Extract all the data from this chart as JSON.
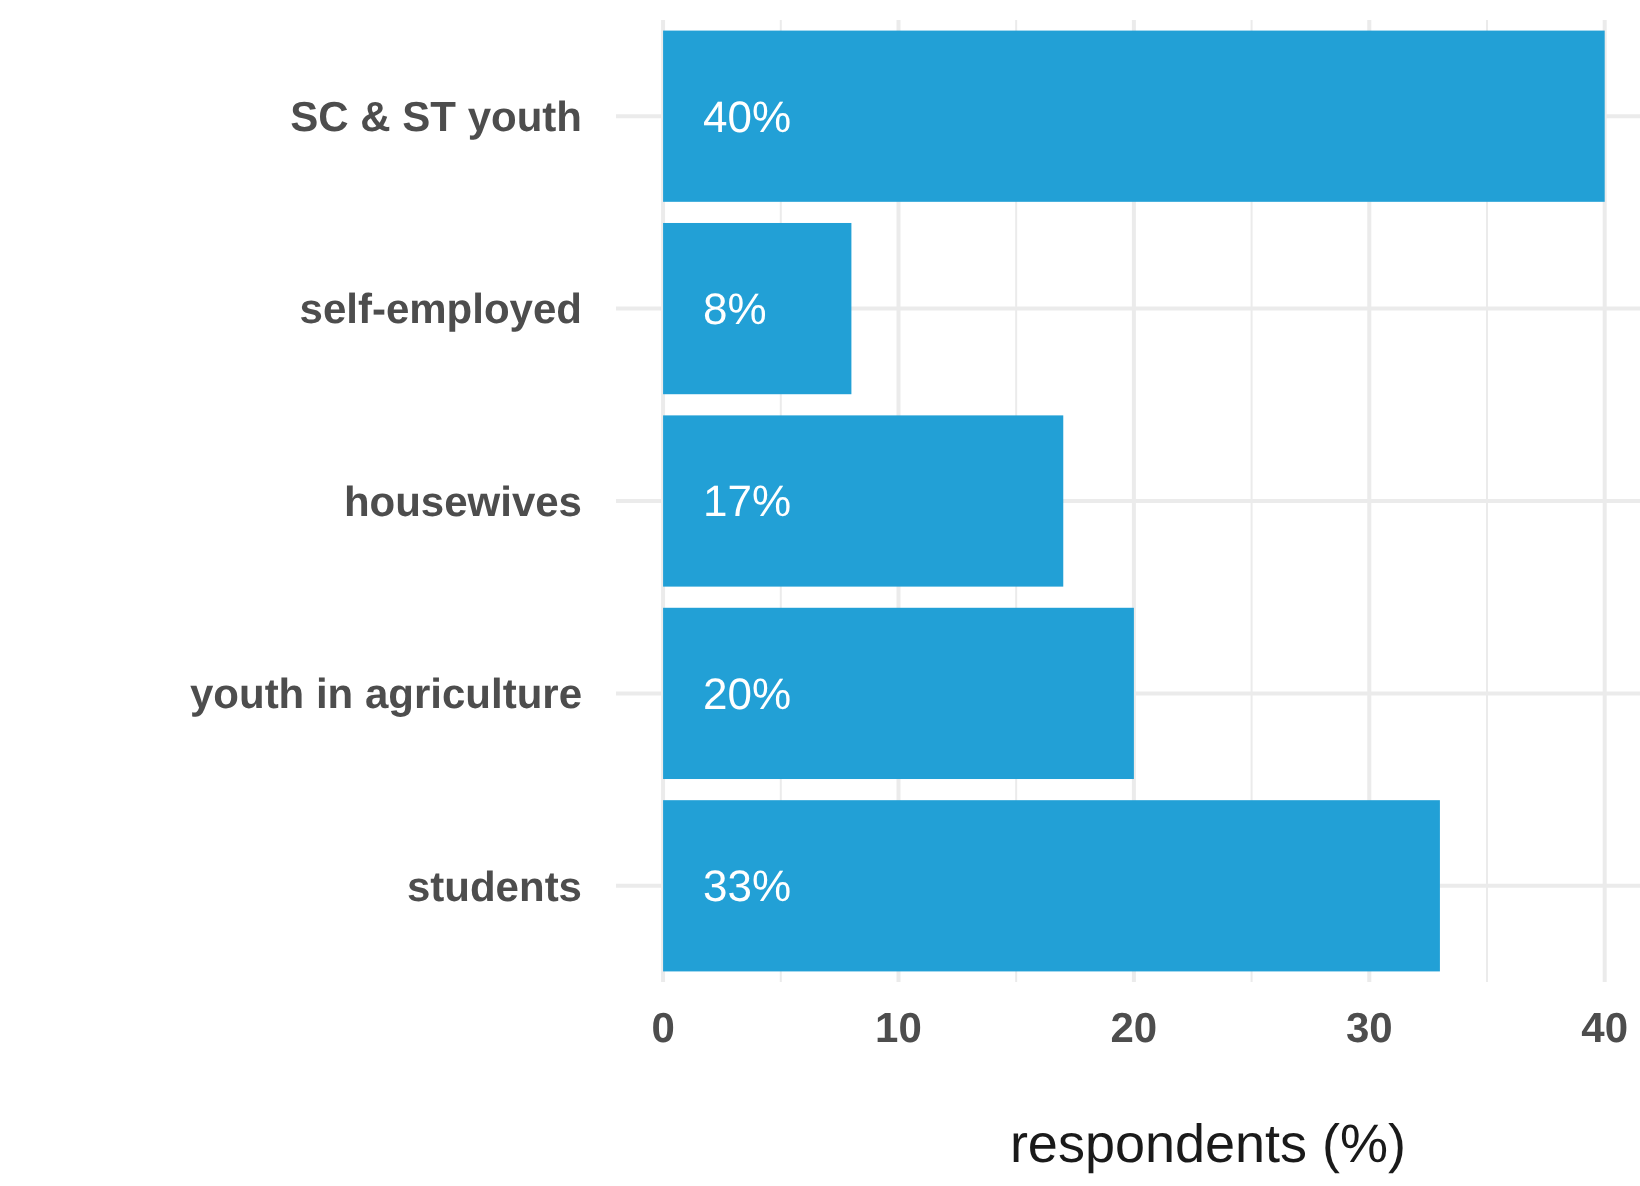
{
  "chart_data": {
    "type": "bar",
    "orientation": "horizontal",
    "xlabel": "respondents (%)",
    "categories": [
      "SC & ST youth",
      "self-employed",
      "housewives",
      "youth in agriculture",
      "students"
    ],
    "values": [
      40,
      8,
      17,
      20,
      33
    ],
    "value_labels": [
      "40%",
      "8%",
      "17%",
      "20%",
      "33%"
    ],
    "color": "#22a0d6",
    "xlim": [
      -2,
      41.5
    ],
    "xticks": [
      0,
      {
        "value": 5,
        "label": null
      },
      10,
      {
        "value": 15,
        "label": null
      },
      20,
      {
        "value": 25,
        "label": null
      },
      30,
      {
        "value": 35,
        "label": null
      },
      40
    ],
    "grid": true
  }
}
